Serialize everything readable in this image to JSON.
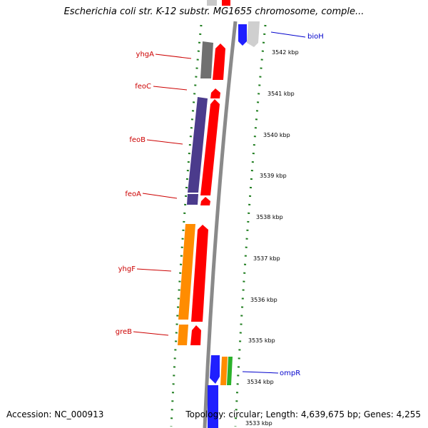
{
  "title": "Escherichia coli str. K-12 substr. MG1655 chromosome, comple...",
  "footer": {
    "accession": "Accession: NC_000913",
    "summary": "Topology: circular; Length: 4,639,675 bp; Genes: 4,255"
  },
  "colors": {
    "backbone": "#8a8a8a",
    "tick": "#1e7d1e",
    "forward_gene": "#ff0000",
    "highlight_label": "#0000cc",
    "gene_label": "#cc0000"
  },
  "kbp_ticks": [
    {
      "label": "3542 kbp"
    },
    {
      "label": "3541 kbp"
    },
    {
      "label": "3540 kbp"
    },
    {
      "label": "3539 kbp"
    },
    {
      "label": "3538 kbp"
    },
    {
      "label": "3537 kbp"
    },
    {
      "label": "3536 kbp"
    },
    {
      "label": "3535 kbp"
    },
    {
      "label": "3534 kbp"
    },
    {
      "label": "3533 kbp"
    }
  ],
  "gene_labels": [
    {
      "name": "bioH",
      "color": "#0000cc"
    },
    {
      "name": "yhgA",
      "color": "#cc0000"
    },
    {
      "name": "feoC",
      "color": "#cc0000"
    },
    {
      "name": "feoB",
      "color": "#cc0000"
    },
    {
      "name": "feoA",
      "color": "#cc0000"
    },
    {
      "name": "yhgF",
      "color": "#cc0000"
    },
    {
      "name": "greB",
      "color": "#cc0000"
    },
    {
      "name": "ompR",
      "color": "#0000cc"
    }
  ]
}
